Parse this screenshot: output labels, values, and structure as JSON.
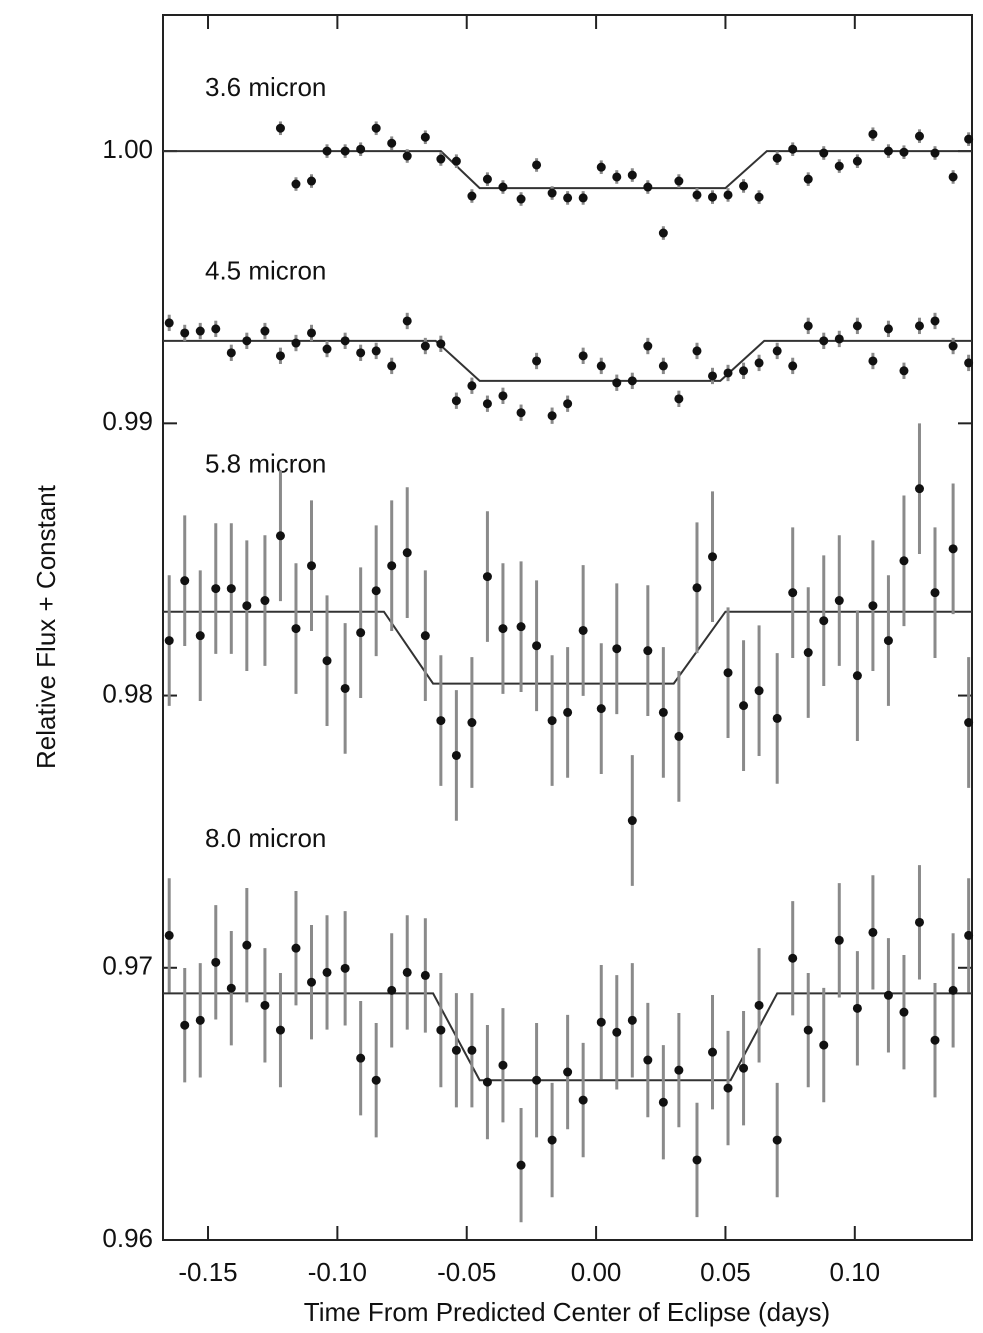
{
  "chart_data": {
    "type": "scatter",
    "xlabel": "Time From Predicted Center of Eclipse (days)",
    "ylabel": "Relative Flux + Constant",
    "xlim": [
      -0.1674,
      0.1453
    ],
    "ylim": [
      0.96,
      1.005
    ],
    "xticks": [
      -0.15,
      {
        "value": -0.1,
        "label": "-0.10"
      },
      -0.05,
      {
        "value": 0,
        "label": "0.00"
      },
      0.05,
      {
        "value": 0.1,
        "label": "0.10"
      }
    ],
    "yticks": [
      0.96,
      0.97,
      0.98,
      0.99,
      {
        "value": 1,
        "label": "1.00"
      }
    ],
    "x": [
      -0.165,
      -0.159,
      -0.153,
      -0.147,
      -0.141,
      -0.135,
      -0.128,
      -0.122,
      -0.116,
      -0.11,
      -0.104,
      -0.097,
      -0.091,
      -0.085,
      -0.079,
      -0.073,
      -0.066,
      -0.06,
      -0.054,
      -0.048,
      -0.042,
      -0.036,
      -0.029,
      -0.023,
      -0.017,
      -0.011,
      -0.005,
      0.002,
      0.008,
      0.014,
      0.02,
      0.026,
      0.032,
      0.039,
      0.045,
      0.051,
      0.057,
      0.063,
      0.07,
      0.076,
      0.082,
      0.088,
      0.094,
      0.101,
      0.107,
      0.113,
      0.119,
      0.125,
      0.131,
      0.138,
      0.144
    ],
    "series": [
      {
        "name": "3.6 micron",
        "color": "#111111",
        "error_color": "#8a8a8a",
        "error": 0.00025,
        "values": [
          null,
          null,
          null,
          null,
          null,
          null,
          null,
          1.00084,
          0.99879,
          0.9989,
          1.0,
          1.0,
          1.00007,
          1.00084,
          1.00029,
          0.99982,
          1.00051,
          0.99971,
          0.99963,
          0.99835,
          0.99897,
          0.99868,
          0.99824,
          0.99949,
          0.99846,
          0.99828,
          0.99828,
          0.99941,
          0.99905,
          0.99912,
          0.99868,
          0.99699,
          0.9989,
          0.99839,
          0.99831,
          0.99839,
          0.99872,
          0.99831,
          0.99974,
          1.00007,
          0.99897,
          0.99993,
          0.99945,
          0.99963,
          1.00062,
          1.0,
          0.99996,
          1.00055,
          0.99993,
          0.99905,
          1.00044
        ],
        "model": {
          "x": [
            -0.1674,
            -0.06,
            -0.045,
            0.05,
            0.066,
            0.1453
          ],
          "values": [
            1.0,
            1.0,
            0.99864,
            0.99864,
            1.0,
            1.0
          ]
        }
      },
      {
        "name": "4.5 micron",
        "color": "#111111",
        "error_color": "#8a8a8a",
        "error": 0.0003,
        "values": [
          0.99369,
          0.99332,
          0.99339,
          0.99347,
          0.99259,
          0.99303,
          0.99339,
          0.99248,
          0.99295,
          0.99332,
          0.99273,
          0.99303,
          0.99259,
          0.99266,
          0.99211,
          0.99376,
          0.99284,
          0.99292,
          0.99083,
          0.99138,
          0.99072,
          0.99101,
          0.99039,
          0.99229,
          0.99028,
          0.99072,
          0.99248,
          0.99211,
          0.99149,
          0.99156,
          0.99284,
          0.99211,
          0.9909,
          0.99266,
          0.99174,
          0.99185,
          0.99193,
          0.99222,
          0.99266,
          0.99211,
          0.99358,
          0.99303,
          0.9931,
          0.99358,
          0.99229,
          0.99347,
          0.99193,
          0.99358,
          0.99376,
          0.99284,
          0.99222
        ],
        "model": {
          "x": [
            -0.1674,
            -0.062,
            -0.045,
            0.048,
            0.065,
            0.1453
          ],
          "values": [
            0.99303,
            0.99303,
            0.99156,
            0.99156,
            0.99303,
            0.99303
          ]
        }
      },
      {
        "name": "5.8 micron",
        "color": "#111111",
        "error_color": "#8a8a8a",
        "error": 0.0024,
        "values": [
          0.98202,
          0.98422,
          0.9822,
          0.98393,
          0.98393,
          0.9833,
          0.98349,
          0.98587,
          0.98246,
          0.98477,
          0.98128,
          0.98026,
          0.98231,
          0.98385,
          0.98477,
          0.98525,
          0.9822,
          0.97908,
          0.9778,
          0.97901,
          0.98437,
          0.98246,
          0.98253,
          0.98183,
          0.97908,
          0.97938,
          0.98239,
          0.97952,
          0.98172,
          0.97541,
          0.98165,
          0.97938,
          0.9785,
          0.98396,
          0.9851,
          0.98084,
          0.97963,
          0.98018,
          0.97916,
          0.98378,
          0.98158,
          0.98275,
          0.98349,
          0.98073,
          0.9833,
          0.98202,
          0.98495,
          0.9876,
          0.98378,
          0.98539,
          0.97901
        ],
        "model": {
          "x": [
            -0.1674,
            -0.082,
            -0.063,
            0.03,
            0.05,
            0.1453
          ],
          "values": [
            0.98308,
            0.98308,
            0.98044,
            0.98044,
            0.98308,
            0.98308
          ]
        }
      },
      {
        "name": "8.0 micron",
        "color": "#111111",
        "error_color": "#8a8a8a",
        "error": 0.0021,
        "values": [
          0.97119,
          0.96789,
          0.96807,
          0.9702,
          0.96925,
          0.97083,
          0.96862,
          0.96771,
          0.97072,
          0.96947,
          0.96983,
          0.96998,
          0.96668,
          0.96587,
          0.96917,
          0.96983,
          0.96972,
          0.96771,
          0.96697,
          0.96697,
          0.9658,
          0.96642,
          0.96275,
          0.96587,
          0.96367,
          0.96617,
          0.96514,
          0.968,
          0.96763,
          0.96807,
          0.96661,
          0.96506,
          0.96624,
          0.96294,
          0.9669,
          0.96558,
          0.96631,
          0.96862,
          0.96367,
          0.97035,
          0.96771,
          0.96716,
          0.97101,
          0.96851,
          0.9713,
          0.96899,
          0.96837,
          0.97167,
          0.96734,
          0.96917,
          0.97119
        ],
        "model": {
          "x": [
            -0.1674,
            -0.063,
            -0.045,
            0.052,
            0.07,
            0.1453
          ],
          "values": [
            0.96906,
            0.96906,
            0.96587,
            0.96587,
            0.96906,
            0.96906
          ]
        }
      }
    ]
  }
}
